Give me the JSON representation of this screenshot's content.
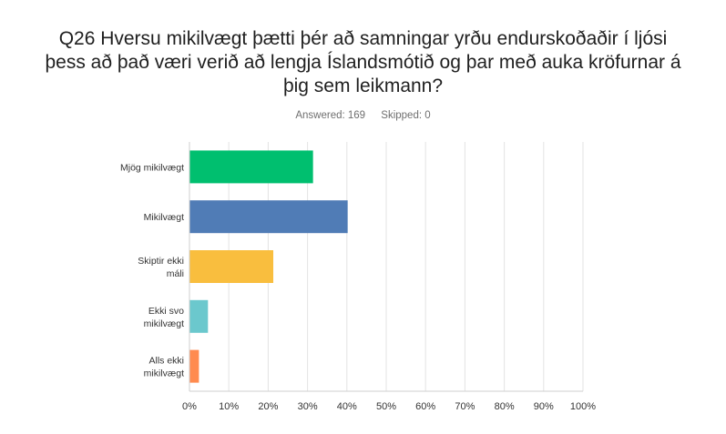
{
  "title": "Q26 Hversu mikilvægt þætti þér að samningar yrðu endurskoðaðir í ljósi þess að það væri verið að lengja Íslandsmótið og þar með auka kröfurnar á þig sem leikmann?",
  "answered": "Answered: 169",
  "skipped": "Skipped: 0",
  "chart_data": {
    "type": "bar",
    "orientation": "horizontal",
    "categories": [
      [
        "Mjög mikilvægt"
      ],
      [
        "Mikilvægt"
      ],
      [
        "Skiptir ekki",
        "máli"
      ],
      [
        "Ekki svo",
        "mikilvægt"
      ],
      [
        "Alls ekki",
        "mikilvægt"
      ]
    ],
    "values": [
      31.4,
      40.2,
      21.3,
      4.7,
      2.4
    ],
    "colors": [
      "#00bf6f",
      "#507cb6",
      "#f9be3e",
      "#6bc8cd",
      "#ff8b4f"
    ],
    "xlim": [
      0,
      100
    ],
    "xticks": [
      0,
      10,
      20,
      30,
      40,
      50,
      60,
      70,
      80,
      90,
      100
    ],
    "tick_suffix": "%",
    "grid": true
  }
}
